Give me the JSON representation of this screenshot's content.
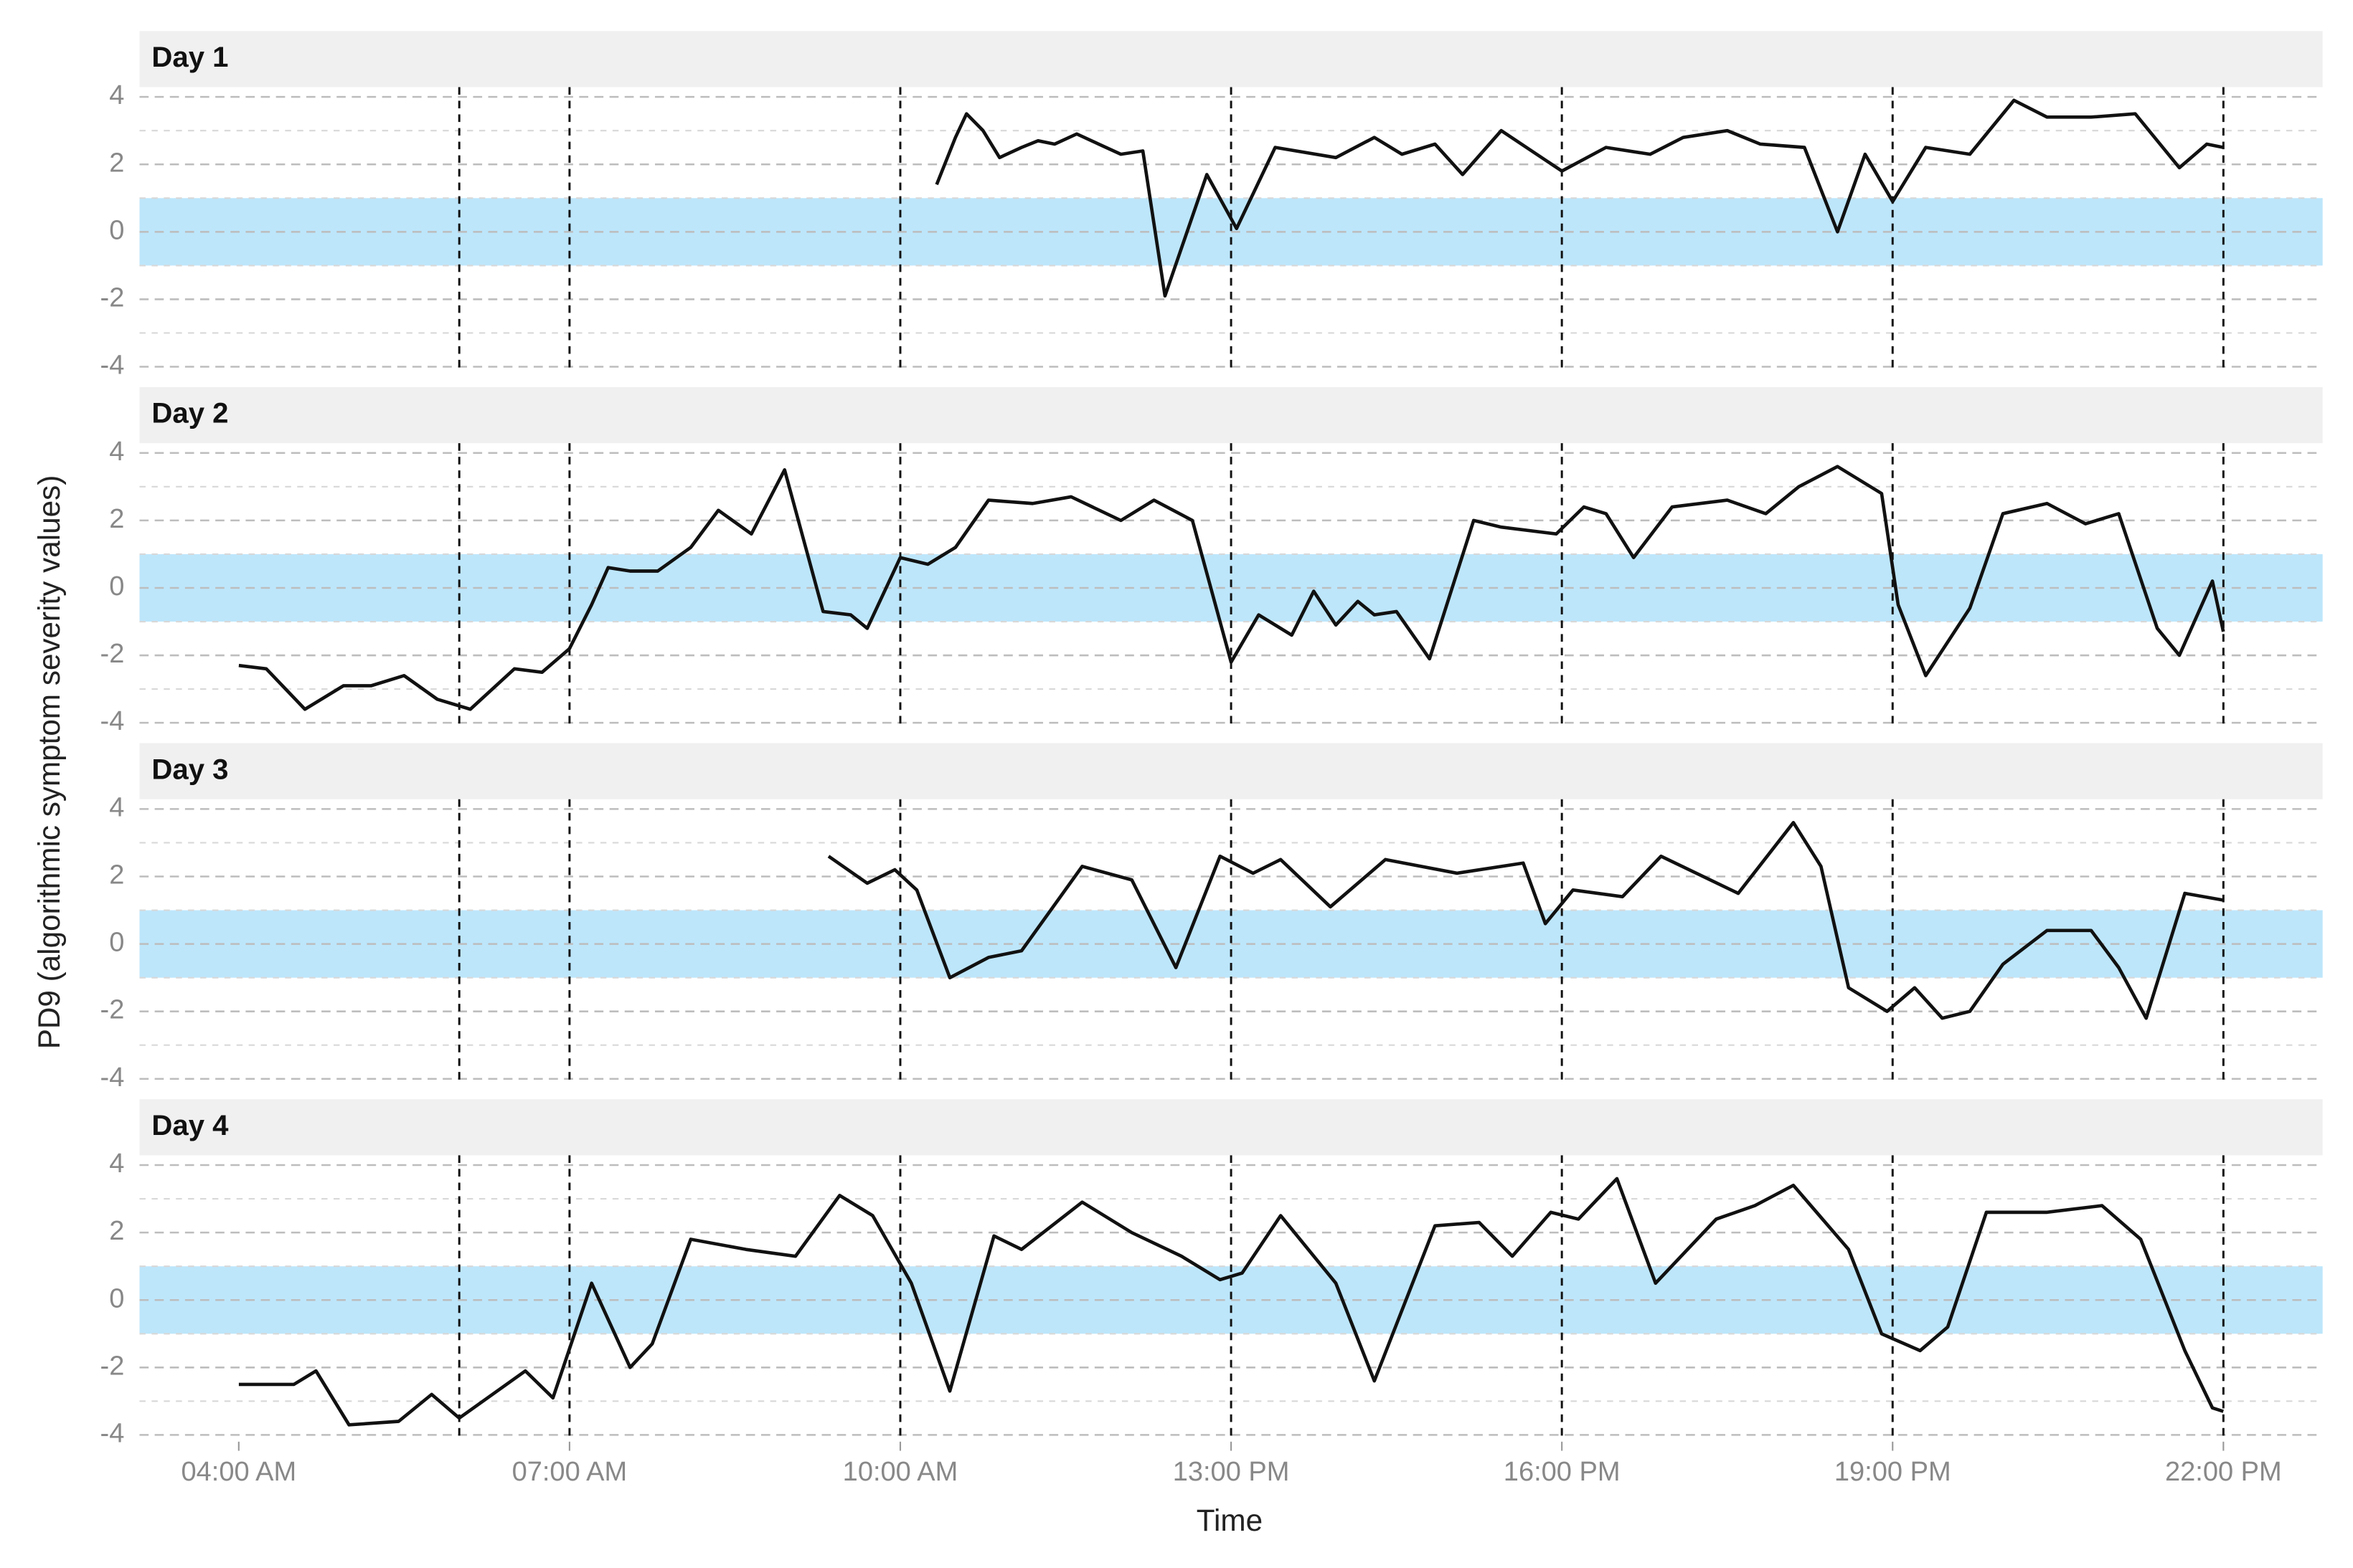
{
  "chart_data": {
    "type": "line",
    "xlabel": "Time",
    "ylabel": "PD9 (algorithmic symptom severity values)",
    "xlim": [
      3.1,
      22.9
    ],
    "ylim": [
      -4.2,
      4.2
    ],
    "xticks": [
      {
        "value": 4,
        "label": "04:00 AM"
      },
      {
        "value": 7,
        "label": "07:00 AM"
      },
      {
        "value": 10,
        "label": "10:00 AM"
      },
      {
        "value": 13,
        "label": "13:00 PM"
      },
      {
        "value": 16,
        "label": "16:00 PM"
      },
      {
        "value": 19,
        "label": "19:00 PM"
      },
      {
        "value": 22,
        "label": "22:00 PM"
      }
    ],
    "yticks": [
      -4,
      -2,
      0,
      2,
      4
    ],
    "vlines": [
      6,
      7,
      10,
      13,
      16,
      19,
      22
    ],
    "band": [
      -1,
      1
    ],
    "band_color": "#bde6fb",
    "color": "#111111",
    "grid": true,
    "panels": [
      {
        "title": "Day 1",
        "x": [
          10.33,
          10.5,
          10.6,
          10.75,
          10.9,
          11.1,
          11.25,
          11.4,
          11.6,
          11.8,
          12.0,
          12.2,
          12.4,
          12.78,
          13.05,
          13.4,
          13.95,
          14.3,
          14.55,
          14.85,
          15.1,
          15.45,
          16.0,
          16.4,
          16.8,
          17.1,
          17.5,
          17.8,
          18.2,
          18.5,
          18.75,
          19.0,
          19.3,
          19.7,
          20.1,
          20.4,
          20.8,
          21.2,
          21.6,
          21.85,
          22.0
        ],
        "values": [
          1.4,
          2.8,
          3.5,
          3.0,
          2.2,
          2.5,
          2.7,
          2.6,
          2.9,
          2.6,
          2.3,
          2.4,
          -1.9,
          1.7,
          0.1,
          2.5,
          2.2,
          2.8,
          2.3,
          2.6,
          1.7,
          3.0,
          1.8,
          2.5,
          2.3,
          2.8,
          3.0,
          2.6,
          2.5,
          0.0,
          2.3,
          0.9,
          2.5,
          2.3,
          3.9,
          3.4,
          3.4,
          3.5,
          1.9,
          2.6,
          2.5
        ]
      },
      {
        "title": "Day 2",
        "x": [
          4.0,
          4.25,
          4.6,
          4.95,
          5.2,
          5.5,
          5.8,
          6.1,
          6.5,
          6.75,
          7.0,
          7.2,
          7.35,
          7.55,
          7.8,
          8.1,
          8.35,
          8.65,
          8.95,
          9.3,
          9.55,
          9.7,
          10.0,
          10.25,
          10.5,
          10.8,
          11.2,
          11.55,
          12.0,
          12.3,
          12.65,
          13.0,
          13.25,
          13.55,
          13.75,
          13.95,
          14.15,
          14.3,
          14.5,
          14.8,
          15.2,
          15.45,
          15.95,
          16.2,
          16.4,
          16.65,
          17.0,
          17.5,
          17.85,
          18.15,
          18.5,
          18.9,
          19.05,
          19.3,
          19.7,
          20.0,
          20.4,
          20.75,
          21.05,
          21.4,
          21.6,
          21.9,
          22.0
        ],
        "values": [
          -2.3,
          -2.4,
          -3.6,
          -2.9,
          -2.9,
          -2.6,
          -3.3,
          -3.6,
          -2.4,
          -2.5,
          -1.8,
          -0.5,
          0.6,
          0.5,
          0.5,
          1.2,
          2.3,
          1.6,
          3.5,
          -0.7,
          -0.8,
          -1.2,
          0.9,
          0.7,
          1.2,
          2.6,
          2.5,
          2.7,
          2.0,
          2.6,
          2.0,
          -2.2,
          -0.8,
          -1.4,
          -0.1,
          -1.1,
          -0.4,
          -0.8,
          -0.7,
          -2.1,
          2.0,
          1.8,
          1.6,
          2.4,
          2.2,
          0.9,
          2.4,
          2.6,
          2.2,
          3.0,
          3.6,
          2.8,
          -0.5,
          -2.6,
          -0.6,
          2.2,
          2.5,
          1.9,
          2.2,
          -1.2,
          -2.0,
          0.2,
          -1.3
        ]
      },
      {
        "title": "Day 3",
        "x": [
          9.35,
          9.7,
          9.95,
          10.15,
          10.45,
          10.8,
          11.1,
          11.65,
          12.1,
          12.5,
          12.9,
          13.2,
          13.45,
          13.9,
          14.4,
          15.05,
          15.65,
          15.85,
          16.1,
          16.55,
          16.9,
          17.6,
          18.1,
          18.35,
          18.6,
          18.95,
          19.2,
          19.45,
          19.7,
          20.0,
          20.4,
          20.8,
          21.05,
          21.3,
          21.65,
          22.0
        ],
        "values": [
          2.6,
          1.8,
          2.2,
          1.6,
          -1.0,
          -0.4,
          -0.2,
          2.3,
          1.9,
          -0.7,
          2.6,
          2.1,
          2.5,
          1.1,
          2.5,
          2.1,
          2.4,
          0.6,
          1.6,
          1.4,
          2.6,
          1.5,
          3.6,
          2.3,
          -1.3,
          -2.0,
          -1.3,
          -2.2,
          -2.0,
          -0.6,
          0.4,
          0.4,
          -0.7,
          -2.2,
          1.5,
          1.3
        ]
      },
      {
        "title": "Day 4",
        "x": [
          4.0,
          4.5,
          4.7,
          5.0,
          5.45,
          5.75,
          6.0,
          6.6,
          6.85,
          7.2,
          7.55,
          7.75,
          8.1,
          8.6,
          9.05,
          9.45,
          9.75,
          10.1,
          10.45,
          10.85,
          11.1,
          11.65,
          12.1,
          12.55,
          12.9,
          13.1,
          13.45,
          13.95,
          14.3,
          14.85,
          15.25,
          15.55,
          15.9,
          16.15,
          16.5,
          16.85,
          17.4,
          17.75,
          18.1,
          18.6,
          18.9,
          19.25,
          19.5,
          19.85,
          20.4,
          20.9,
          21.25,
          21.65,
          21.9,
          22.0
        ],
        "values": [
          -2.5,
          -2.5,
          -2.1,
          -3.7,
          -3.6,
          -2.8,
          -3.5,
          -2.1,
          -2.9,
          0.5,
          -2.0,
          -1.3,
          1.8,
          1.5,
          1.3,
          3.1,
          2.5,
          0.5,
          -2.7,
          1.9,
          1.5,
          2.9,
          2.0,
          1.3,
          0.6,
          0.8,
          2.5,
          0.5,
          -2.4,
          2.2,
          2.3,
          1.3,
          2.6,
          2.4,
          3.6,
          0.5,
          2.4,
          2.8,
          3.4,
          1.5,
          -1.0,
          -1.5,
          -0.8,
          2.6,
          2.6,
          2.8,
          1.8,
          -1.5,
          -3.2,
          -3.3
        ]
      }
    ]
  }
}
